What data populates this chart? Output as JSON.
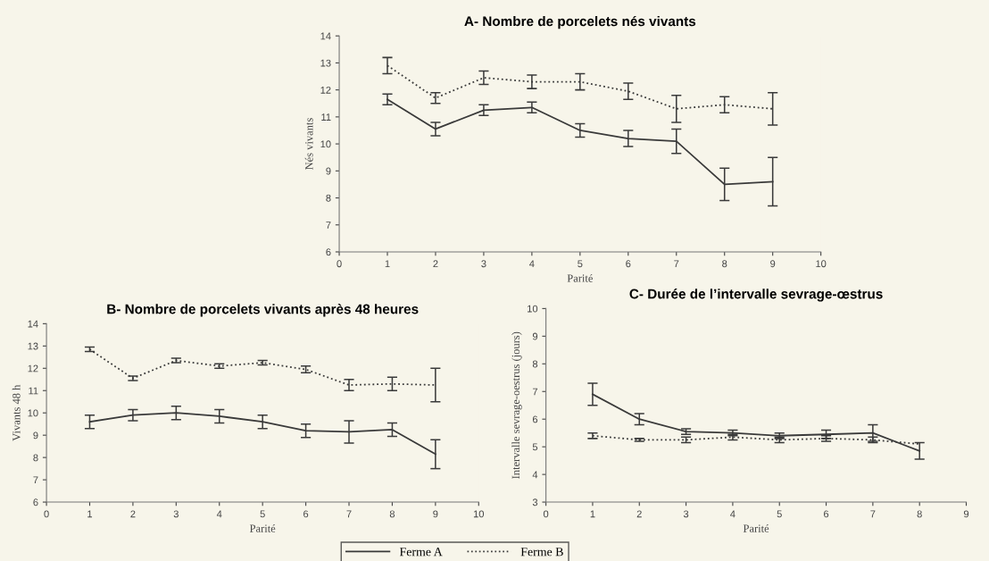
{
  "chart_data": [
    {
      "type": "line",
      "title": "A- Nombre de porcelets nés vivants",
      "xlabel": "Parité",
      "ylabel": "Nés vivants",
      "x": [
        1,
        2,
        3,
        4,
        5,
        6,
        7,
        8,
        9
      ],
      "xlim": [
        0,
        10
      ],
      "xticks": [
        0,
        1,
        2,
        3,
        4,
        5,
        6,
        7,
        8,
        9,
        10
      ],
      "ylim": [
        6,
        14
      ],
      "yticks": [
        6,
        7,
        8,
        9,
        10,
        11,
        12,
        13,
        14
      ],
      "grid": false,
      "marker": "none",
      "series": [
        {
          "color": "#3a3a3a",
          "line_style": "solid",
          "values": [
            11.65,
            10.55,
            11.25,
            11.35,
            10.5,
            10.2,
            10.1,
            8.5,
            8.6
          ],
          "errors": [
            0.2,
            0.25,
            0.2,
            0.2,
            0.25,
            0.3,
            0.45,
            0.6,
            0.9
          ]
        },
        {
          "color": "#3a3a3a",
          "line_style": "dotted",
          "values": [
            12.9,
            11.7,
            12.45,
            12.3,
            12.3,
            11.95,
            11.3,
            11.45,
            11.3
          ],
          "errors": [
            0.3,
            0.2,
            0.25,
            0.25,
            0.3,
            0.3,
            0.5,
            0.3,
            0.6
          ]
        }
      ]
    },
    {
      "type": "line",
      "title": "B- Nombre de porcelets vivants après 48 heures",
      "xlabel": "Parité",
      "ylabel": "Vivants 48 h",
      "x": [
        1,
        2,
        3,
        4,
        5,
        6,
        7,
        8,
        9
      ],
      "xlim": [
        0,
        10
      ],
      "xticks": [
        0,
        1,
        2,
        3,
        4,
        5,
        6,
        7,
        8,
        9,
        10
      ],
      "ylim": [
        6,
        14
      ],
      "yticks": [
        6,
        7,
        8,
        9,
        10,
        11,
        12,
        13,
        14
      ],
      "grid": false,
      "marker": "none",
      "legend": "bottom",
      "series": [
        {
          "name": "Ferme A",
          "color": "#3a3a3a",
          "line_style": "solid",
          "values": [
            9.6,
            9.9,
            10.0,
            9.85,
            9.6,
            9.2,
            9.15,
            9.25,
            8.15
          ],
          "errors": [
            0.3,
            0.25,
            0.3,
            0.3,
            0.3,
            0.3,
            0.5,
            0.3,
            0.65
          ]
        },
        {
          "name": "Ferme B",
          "color": "#3a3a3a",
          "line_style": "dotted",
          "values": [
            12.85,
            11.55,
            12.35,
            12.1,
            12.25,
            11.95,
            11.25,
            11.3,
            11.25
          ],
          "errors": [
            0.1,
            0.1,
            0.1,
            0.1,
            0.1,
            0.15,
            0.25,
            0.3,
            0.75
          ]
        }
      ]
    },
    {
      "type": "line",
      "title": "C- Durée de l’intervalle sevrage-œstrus",
      "xlabel": "Parité",
      "ylabel": "Intervalle sevrage-oestrus (jours)",
      "x": [
        1,
        2,
        3,
        4,
        5,
        6,
        7,
        8
      ],
      "xlim": [
        0,
        9
      ],
      "xticks": [
        0,
        1,
        2,
        3,
        4,
        5,
        6,
        7,
        8,
        9
      ],
      "ylim": [
        3,
        10
      ],
      "yticks": [
        3,
        4,
        5,
        6,
        7,
        8,
        9,
        10
      ],
      "grid": false,
      "marker": "none",
      "series": [
        {
          "color": "#3a3a3a",
          "line_style": "solid",
          "values": [
            6.9,
            6.0,
            5.55,
            5.5,
            5.4,
            5.45,
            5.5,
            4.85
          ],
          "errors": [
            0.4,
            0.2,
            0.1,
            0.1,
            0.1,
            0.15,
            0.3,
            0.3
          ]
        },
        {
          "color": "#3a3a3a",
          "line_style": "dotted",
          "values": [
            5.4,
            5.25,
            5.25,
            5.35,
            5.25,
            5.3,
            5.25,
            5.1
          ],
          "errors": [
            0.1,
            0.05,
            0.1,
            0.1,
            0.1,
            0.1,
            0.1,
            null
          ]
        }
      ]
    }
  ]
}
